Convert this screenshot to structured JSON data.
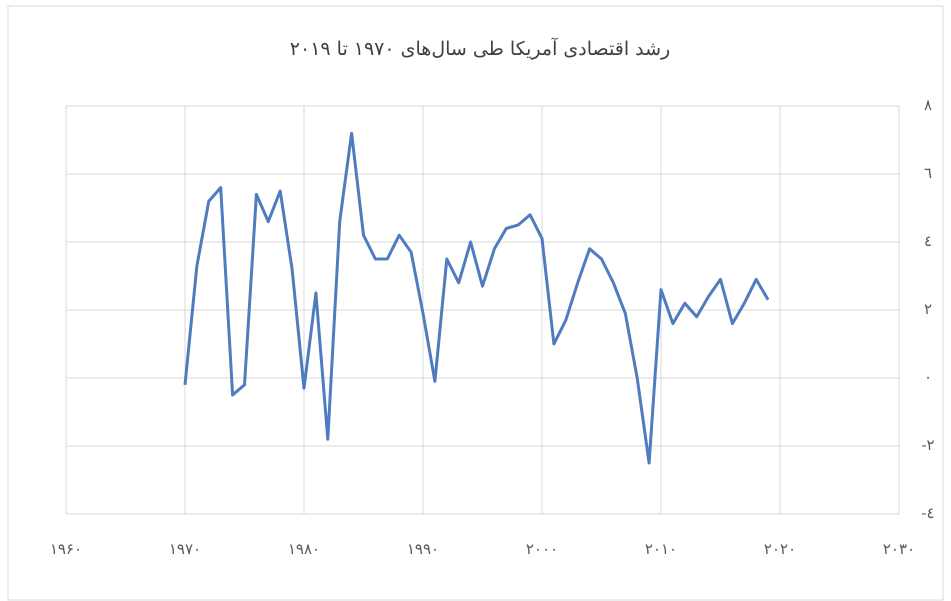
{
  "chart_data": {
    "type": "line",
    "title": "رشد اقتصادی آمریکا طی سال‌های ۱۹۷۰ تا ۲۰۱۹",
    "x": [
      1970,
      1971,
      1972,
      1973,
      1974,
      1975,
      1976,
      1977,
      1978,
      1979,
      1980,
      1981,
      1982,
      1983,
      1984,
      1985,
      1986,
      1987,
      1988,
      1989,
      1990,
      1991,
      1992,
      1993,
      1994,
      1995,
      1996,
      1997,
      1998,
      1999,
      2000,
      2001,
      2002,
      2003,
      2004,
      2005,
      2006,
      2007,
      2008,
      2009,
      2010,
      2011,
      2012,
      2013,
      2014,
      2015,
      2016,
      2017,
      2018,
      2019
    ],
    "series": [
      {
        "color": "#4f7cbf",
        "values": [
          -0.2,
          3.3,
          5.2,
          5.6,
          -0.5,
          -0.2,
          5.4,
          4.6,
          5.5,
          3.2,
          -0.3,
          2.5,
          -1.8,
          4.6,
          7.2,
          4.2,
          3.5,
          3.5,
          4.2,
          3.7,
          1.9,
          -0.1,
          3.5,
          2.8,
          4.0,
          2.7,
          3.8,
          4.4,
          4.5,
          4.8,
          4.1,
          1.0,
          1.7,
          2.8,
          3.8,
          3.5,
          2.8,
          1.9,
          0.0,
          -2.5,
          2.6,
          1.6,
          2.2,
          1.8,
          2.4,
          2.9,
          1.6,
          2.2,
          2.9,
          2.3
        ]
      }
    ],
    "xlim": [
      1960,
      2030
    ],
    "xticks": [
      {
        "value": 1960,
        "label": "۱۹۶۰"
      },
      {
        "value": 1970,
        "label": "۱۹۷۰"
      },
      {
        "value": 1980,
        "label": "۱۹۸۰"
      },
      {
        "value": 1990,
        "label": "۱۹۹۰"
      },
      {
        "value": 2000,
        "label": "۲۰۰۰"
      },
      {
        "value": 2010,
        "label": "۲۰۱۰"
      },
      {
        "value": 2020,
        "label": "۲۰۲۰"
      },
      {
        "value": 2030,
        "label": "۲۰۳۰"
      }
    ],
    "ylim": [
      -4,
      8
    ],
    "yticks": [
      {
        "value": -4,
        "label": "-٤"
      },
      {
        "value": -2,
        "label": "-۲"
      },
      {
        "value": 0,
        "label": "٠"
      },
      {
        "value": 2,
        "label": "۲"
      },
      {
        "value": 4,
        "label": "٤"
      },
      {
        "value": 6,
        "label": "٦"
      },
      {
        "value": 8,
        "label": "۸"
      }
    ],
    "grid": true
  }
}
